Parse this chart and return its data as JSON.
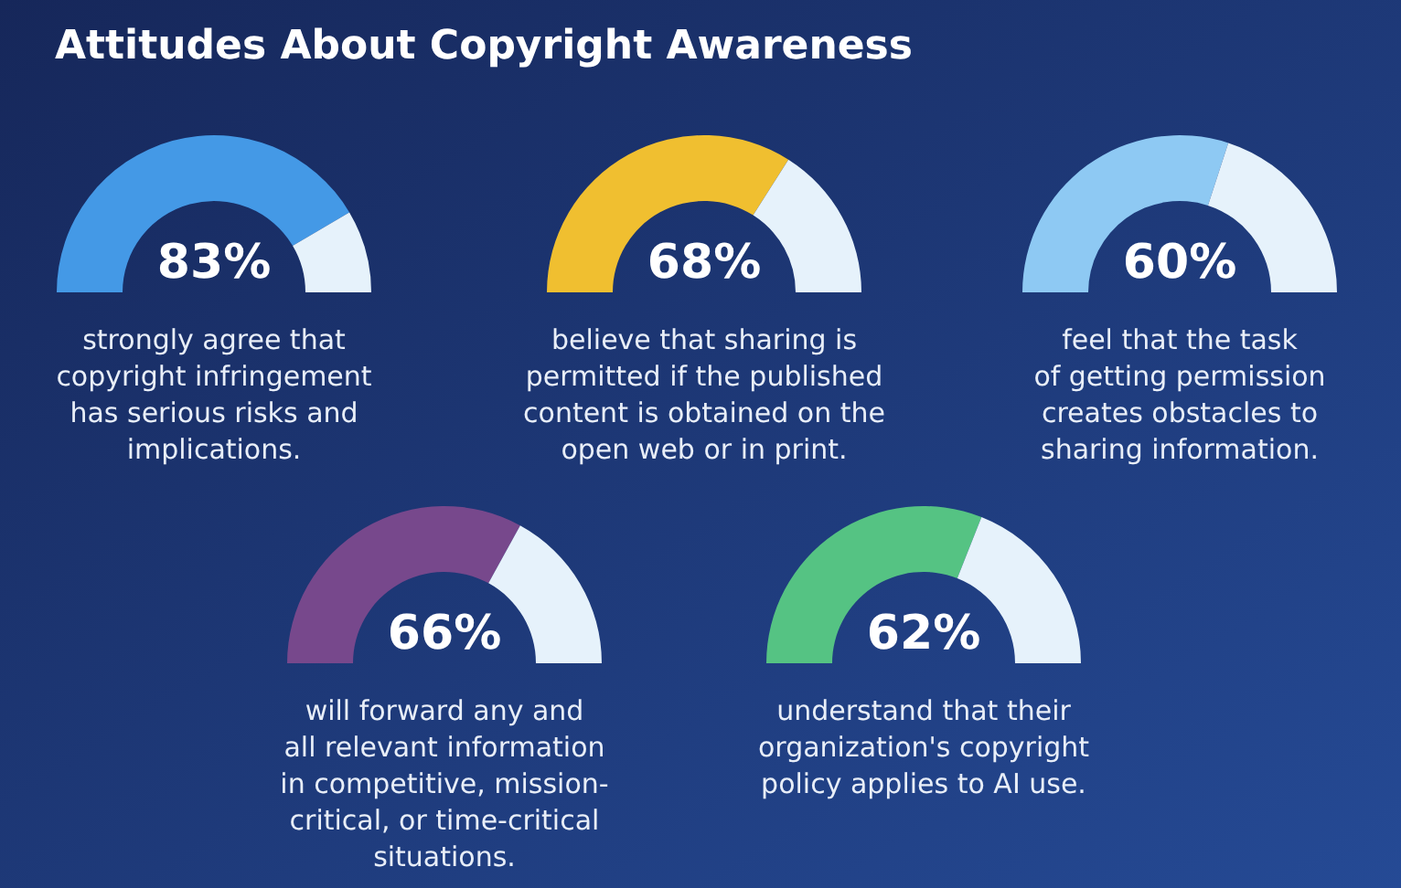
{
  "chart_data": [
    {
      "type": "other",
      "title": "Attitudes About Copyright Awareness"
    },
    {
      "type": "donut",
      "categories": [
        null,
        null
      ],
      "values": [
        83,
        17
      ],
      "colors": [
        "#4499e6",
        "#e6f2fb"
      ],
      "value_labels": [
        "83%",
        null
      ],
      "annotations": [
        "strongly agree that\ncopyright infringement\nhas serious risks and\nimplications."
      ]
    },
    {
      "type": "donut",
      "categories": [
        null,
        null
      ],
      "values": [
        68,
        32
      ],
      "colors": [
        "#f0bf30",
        "#e6f2fb"
      ],
      "value_labels": [
        "68%",
        null
      ],
      "annotations": [
        "believe that sharing is\npermitted if the published\ncontent is obtained on the\nopen web or in print."
      ]
    },
    {
      "type": "donut",
      "categories": [
        null,
        null
      ],
      "values": [
        60,
        40
      ],
      "colors": [
        "#8ec9f3",
        "#e6f2fb"
      ],
      "value_labels": [
        "60%",
        null
      ],
      "annotations": [
        "feel that the task\nof getting permission\ncreates obstacles to\nsharing information."
      ]
    },
    {
      "type": "donut",
      "categories": [
        null,
        null
      ],
      "values": [
        66,
        34
      ],
      "colors": [
        "#77488c",
        "#e6f2fb"
      ],
      "value_labels": [
        "66%",
        null
      ],
      "annotations": [
        "will forward any and\nall relevant information\nin competitive, mission-\ncritical, or time-critical\nsituations."
      ]
    },
    {
      "type": "donut",
      "categories": [
        null,
        null
      ],
      "values": [
        62,
        38
      ],
      "colors": [
        "#55c383",
        "#e6f2fb"
      ],
      "value_labels": [
        "62%",
        null
      ],
      "annotations": [
        "understand that their\norganization's copyright\npolicy applies to AI use."
      ]
    }
  ]
}
